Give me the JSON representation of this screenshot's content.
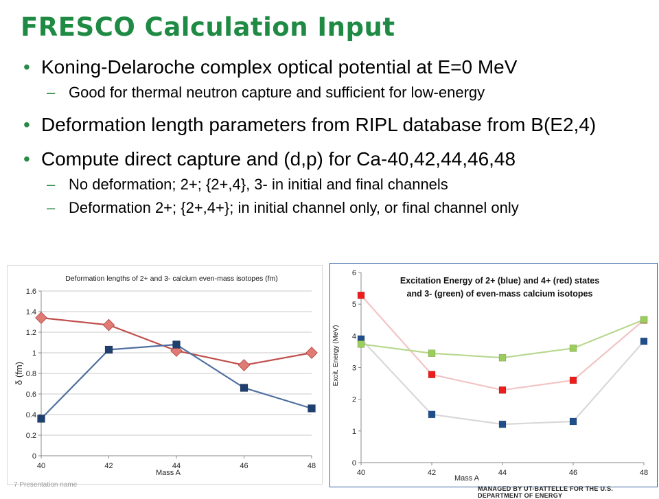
{
  "slide": {
    "title": "FRESCO Calculation Input",
    "bullets": [
      {
        "text": "Koning-Delaroche complex optical potential at E=0 MeV",
        "subs": [
          "Good for thermal neutron capture and sufficient for low-energy"
        ]
      },
      {
        "text": "Deformation length parameters from RIPL database from B(E2,4)",
        "subs": []
      },
      {
        "text": "Compute direct capture and (d,p) for Ca-40,42,44,46,48",
        "subs": [
          "No deformation; 2+; {2+,4}, 3- in initial and final channels",
          "Deformation 2+; {2+,4+}; in initial channel only, or final channel only"
        ]
      }
    ],
    "footer_left": "7  Presentation name",
    "footer_right": "MANAGED BY UT-BATTELLE FOR THE U.S. DEPARTMENT OF ENERGY"
  },
  "chart_data": [
    {
      "type": "line",
      "title": "Deformation lengths of 2+ and 3- calcium even-mass isotopes (fm)",
      "xlabel": "Mass A",
      "ylabel": "δ (fm)",
      "x": [
        40,
        42,
        44,
        46,
        48
      ],
      "xticks": [
        "40",
        "42",
        "44",
        "46",
        "48"
      ],
      "ylim": [
        0,
        1.6
      ],
      "yticks": [
        "0",
        "0.2",
        "0.4",
        "0.6",
        "0.8",
        "1",
        "1.2",
        "1.4",
        "1.6"
      ],
      "grid": true,
      "series": [
        {
          "color": "#c0504d",
          "marker": "diamond",
          "marker_color": "#e07a74",
          "values": [
            1.34,
            1.27,
            1.02,
            0.88,
            1.0
          ]
        },
        {
          "color": "#4f6f9f",
          "marker": "square",
          "marker_color": "#1f3f6f",
          "values": [
            0.36,
            1.03,
            1.08,
            0.66,
            0.46
          ]
        }
      ]
    },
    {
      "type": "line",
      "title": "Excitation Energy of 2+ (blue) and 4+ (red) states and 3- (green) of even-mass calcium isotopes",
      "title_lines": [
        "Excitation Energy of 2+ (blue) and 4+ (red) states",
        "and 3- (green) of even-mass calcium isotopes"
      ],
      "xlabel": "Mass A",
      "ylabel": "Excit. Energy (MeV)",
      "x": [
        40,
        42,
        44,
        46,
        48
      ],
      "xticks": [
        "40",
        "42",
        "44",
        "46",
        "48"
      ],
      "ylim": [
        0,
        6
      ],
      "yticks": [
        "0",
        "1",
        "2",
        "3",
        "4",
        "5",
        "6"
      ],
      "grid": false,
      "series": [
        {
          "color": "#f2c4c4",
          "marker": "square",
          "marker_color": "#ee1c1c",
          "values": [
            5.28,
            2.78,
            2.29,
            2.6,
            4.5
          ]
        },
        {
          "color": "#d8d8d8",
          "marker": "square",
          "marker_color": "#1f4e8c",
          "values": [
            3.9,
            1.52,
            1.21,
            1.3,
            3.83
          ]
        },
        {
          "color": "#b8d890",
          "marker": "square",
          "marker_color": "#9acd5a",
          "values": [
            3.74,
            3.45,
            3.31,
            3.61,
            4.51
          ]
        }
      ]
    }
  ]
}
